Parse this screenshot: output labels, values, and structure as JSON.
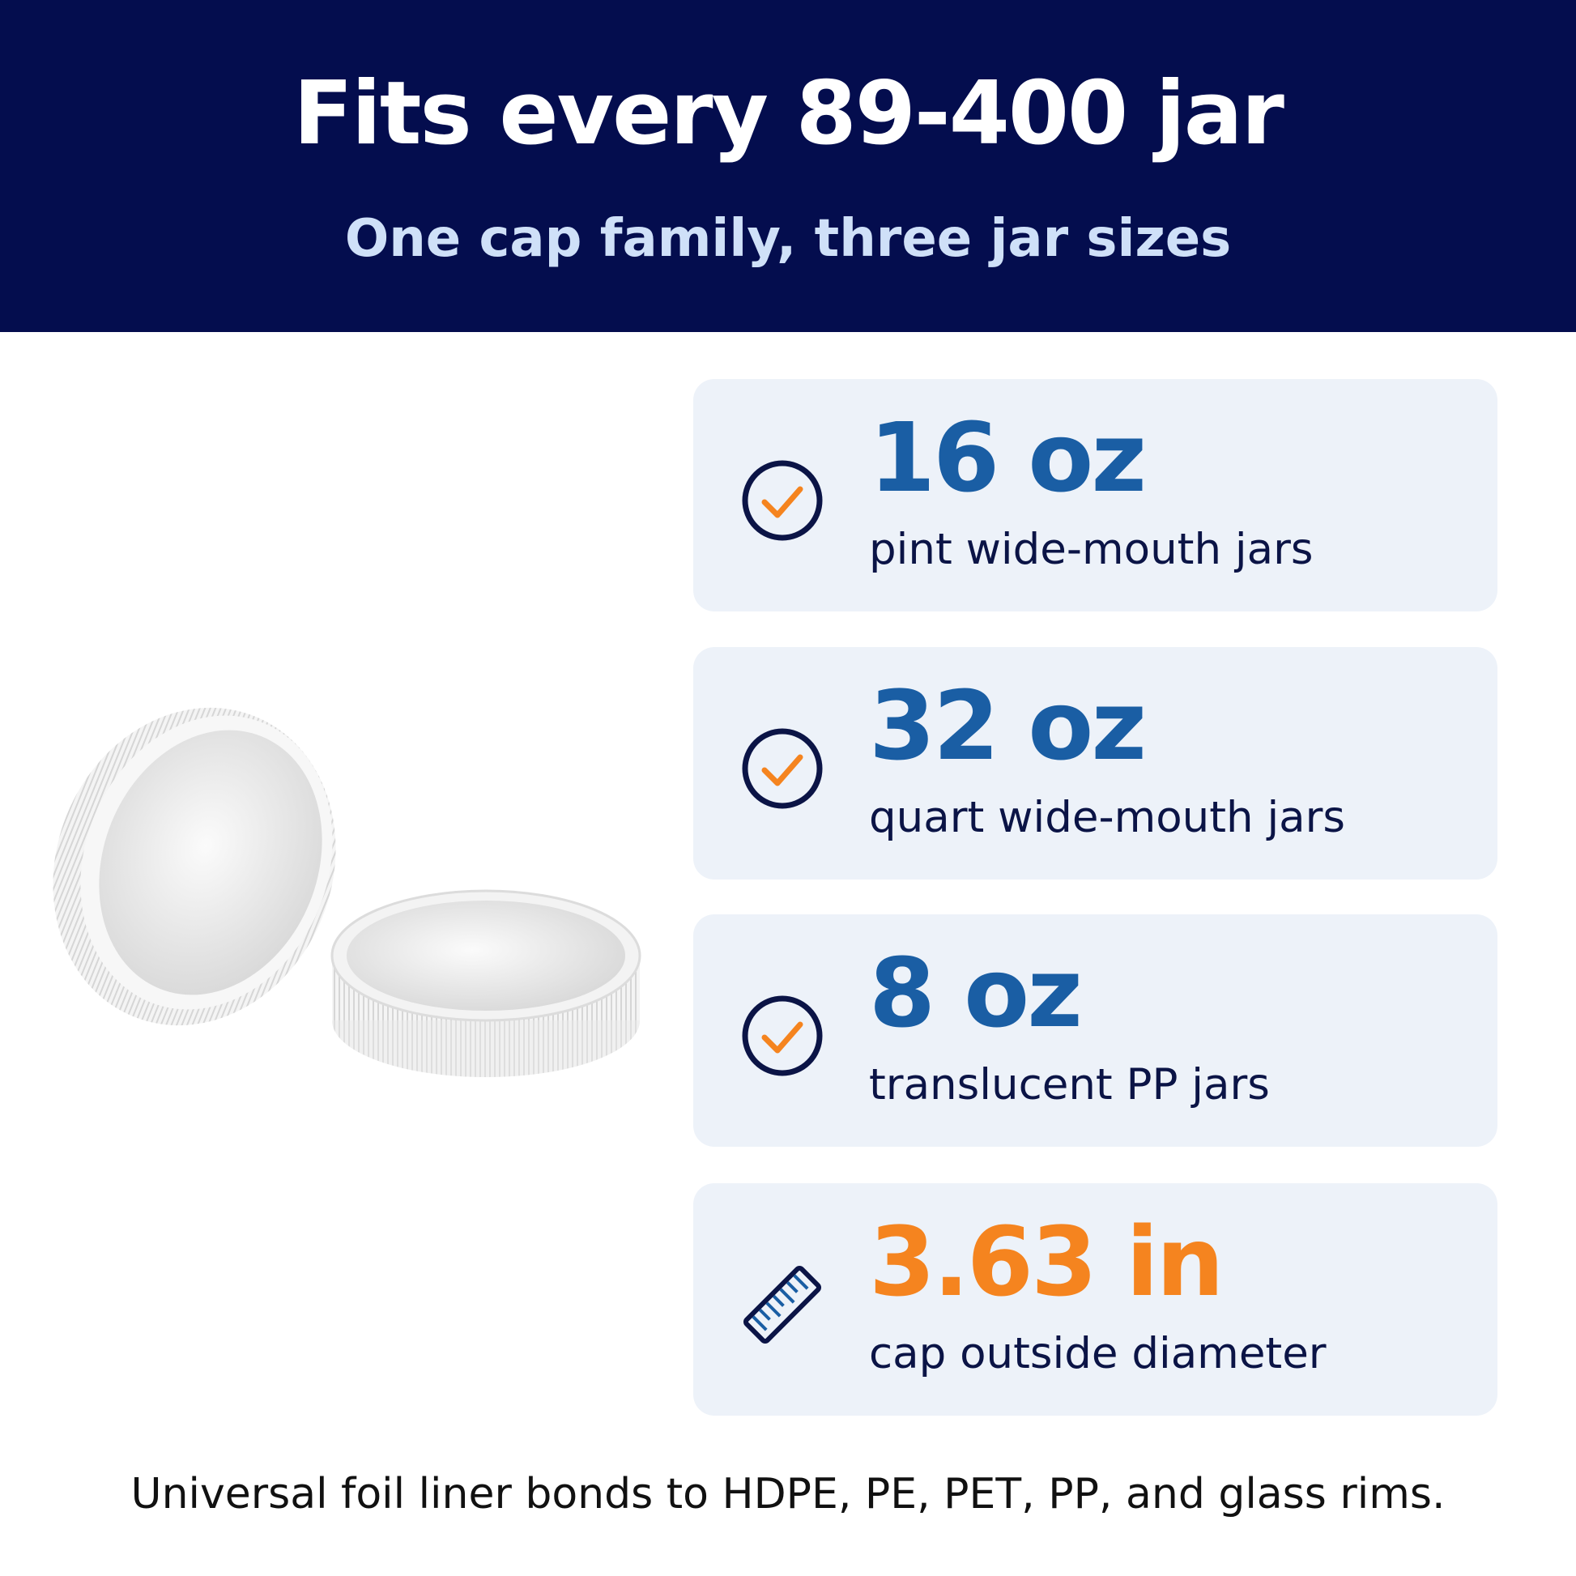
{
  "header": {
    "title": "Fits every 89-400 jar",
    "subtitle": "One cap family, three jar sizes"
  },
  "features": [
    {
      "value": "16 oz",
      "label": "pint wide-mouth jars"
    },
    {
      "value": "32 oz",
      "label": "quart wide-mouth jars"
    },
    {
      "value": "8 oz",
      "label": "translucent PP jars"
    },
    {
      "value": "3.63 in",
      "label": "cap outside diameter"
    }
  ],
  "footer": "Universal foil liner bonds to HDPE, PE, PET, PP, and glass rims."
}
